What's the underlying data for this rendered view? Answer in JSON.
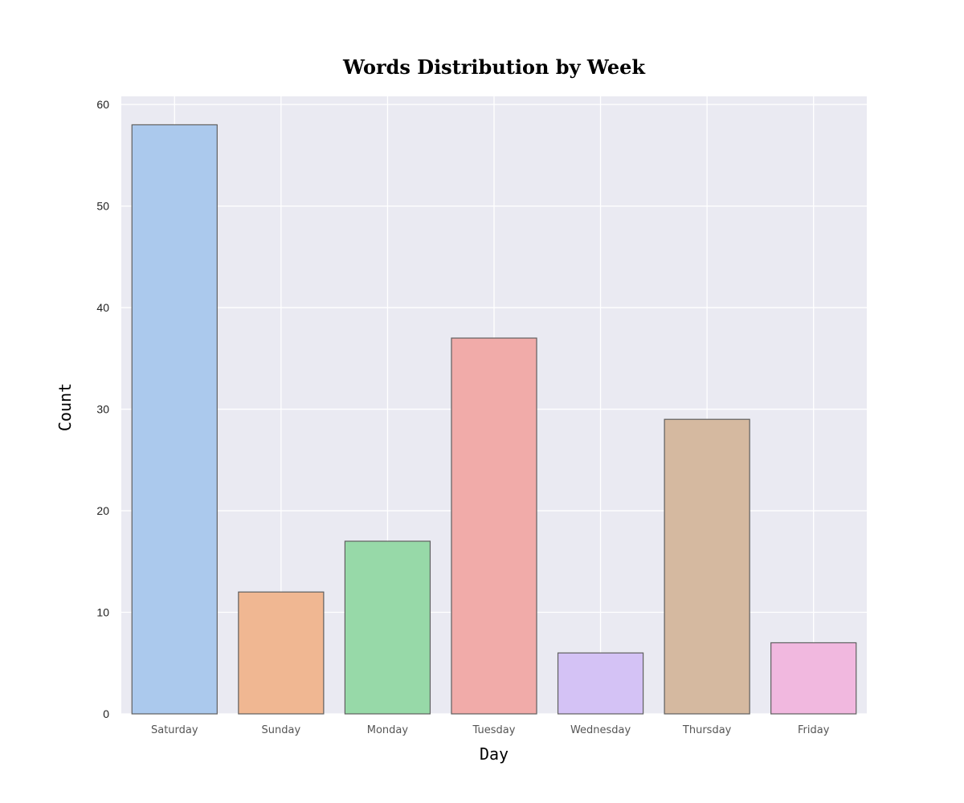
{
  "chart_data": {
    "type": "bar",
    "title": "Words Distribution by Week",
    "xlabel": "Day",
    "ylabel": "Count",
    "categories": [
      "Saturday",
      "Sunday",
      "Monday",
      "Tuesday",
      "Wednesday",
      "Thursday",
      "Friday"
    ],
    "values": [
      58,
      12,
      17,
      37,
      6,
      29,
      7
    ],
    "colors": [
      "#abc9ed",
      "#f0b792",
      "#97d9a8",
      "#f1aba9",
      "#d4c2f5",
      "#d5b9a0",
      "#f1b8df"
    ],
    "ylim": [
      0,
      60.8
    ],
    "yticks": [
      "0",
      "10",
      "20",
      "30",
      "40",
      "50",
      "60"
    ],
    "grid": true,
    "background": "#eaeaf2",
    "grid_color": "#ffffff",
    "bar_edge_color": "#5f5f5f"
  }
}
